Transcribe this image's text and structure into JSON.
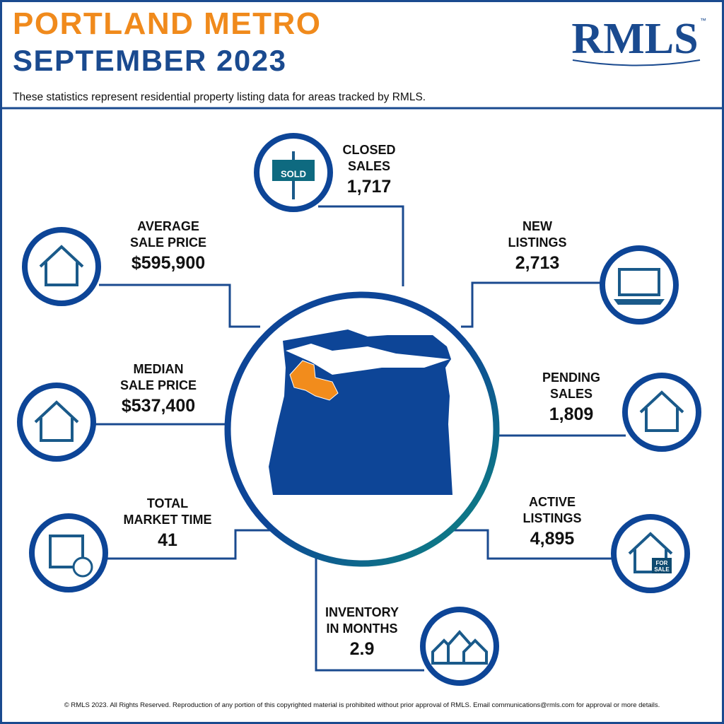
{
  "header": {
    "title_line1": "PORTLAND METRO",
    "title_line2": "SEPTEMBER 2023",
    "logo": "RMLS",
    "trademark": "™",
    "subtitle": "These statistics represent residential property listing data for areas tracked by RMLS."
  },
  "stats": [
    {
      "label": [
        "CLOSED",
        "SALES"
      ],
      "value": "1,717",
      "icon_text": "SOLD"
    },
    {
      "label": [
        "AVERAGE",
        "SALE PRICE"
      ],
      "value": "$595,900"
    },
    {
      "label": [
        "NEW",
        "LISTINGS"
      ],
      "value": "2,713"
    },
    {
      "label": [
        "MEDIAN",
        "SALE PRICE"
      ],
      "value": "$537,400"
    },
    {
      "label": [
        "PENDING",
        "SALES"
      ],
      "value": "1,809"
    },
    {
      "label": [
        "TOTAL",
        "MARKET TIME"
      ],
      "value": "41"
    },
    {
      "label": [
        "ACTIVE",
        "LISTINGS"
      ],
      "value": "4,895",
      "icon_text": [
        "FOR",
        "SALE"
      ]
    },
    {
      "label": [
        "INVENTORY",
        "IN MONTHS"
      ],
      "value": "2.9"
    }
  ],
  "footer": "© RMLS 2023. All Rights Reserved. Reproduction of any portion of this copyrighted material is prohibited without prior approval of RMLS. Email communications@rmls.com for approval or more details."
}
